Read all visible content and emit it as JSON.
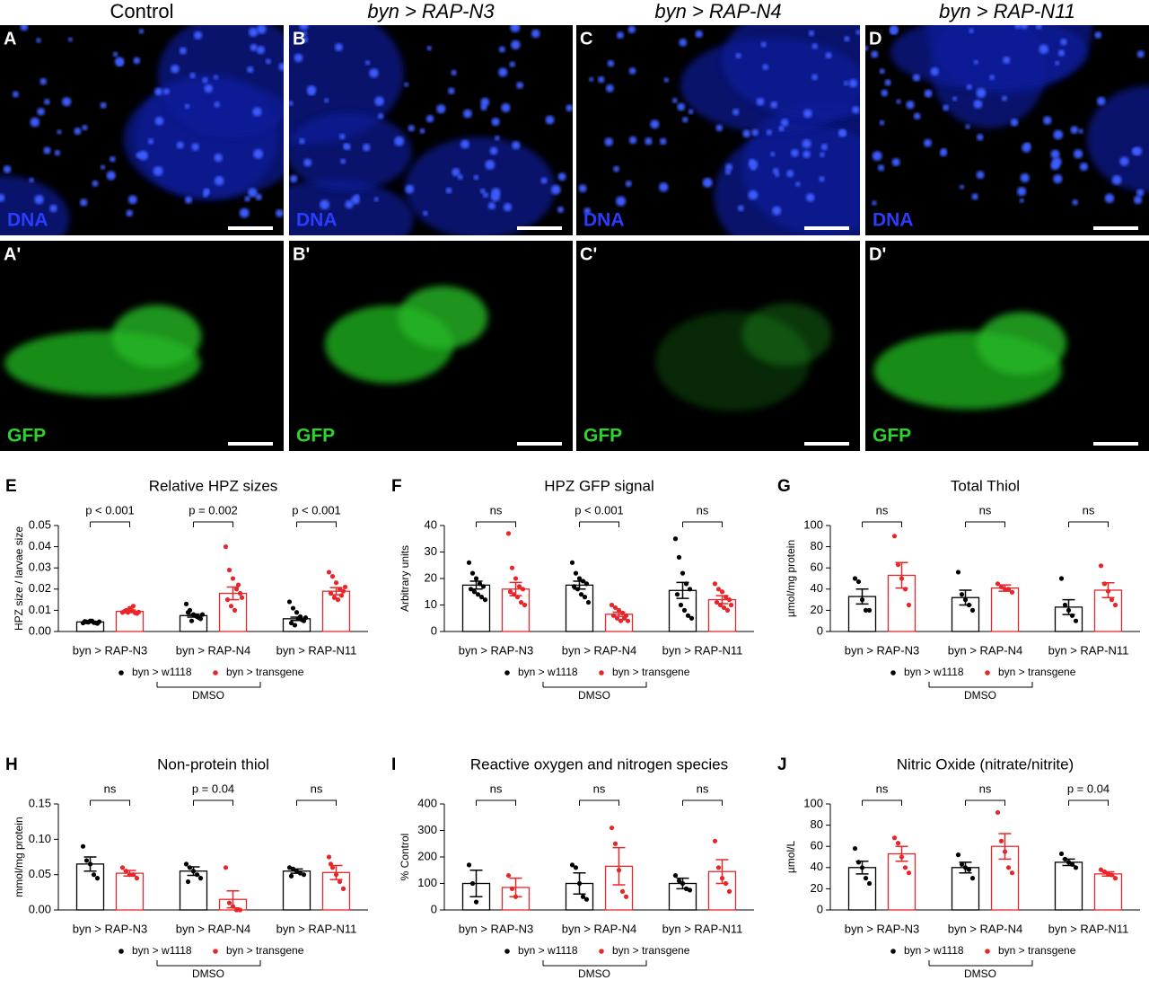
{
  "images": {
    "columns": [
      "Control",
      "byn > RAP-N3",
      "byn > RAP-N4",
      "byn > RAP-N11"
    ],
    "rows": [
      {
        "channel": "DNA",
        "panels": [
          "A",
          "B",
          "C",
          "D"
        ]
      },
      {
        "channel": "GFP",
        "panels": [
          "A'",
          "B'",
          "C'",
          "D'"
        ]
      }
    ]
  },
  "chart_data": [
    {
      "type": "bar",
      "panel": "E",
      "title": "Relative HPZ sizes",
      "ylabel": "HPZ size / larvae size",
      "categories": [
        "byn > RAP-N3",
        "byn > RAP-N4",
        "byn > RAP-N11"
      ],
      "ylim": [
        0,
        0.05
      ],
      "yticks": [
        {
          "value": 0,
          "label": "0.00"
        },
        {
          "value": 0.01,
          "label": "0.01"
        },
        {
          "value": 0.02,
          "label": "0.02"
        },
        {
          "value": 0.03,
          "label": "0.03"
        },
        {
          "value": 0.04,
          "label": "0.04"
        },
        {
          "value": 0.05,
          "label": "0.05"
        }
      ],
      "comparisons": [
        "p < 0.001",
        "p = 0.002",
        "p < 0.001"
      ],
      "group_label": "DMSO",
      "series": [
        {
          "name": "byn > w1118",
          "color": "#000000",
          "values": [
            0.0045,
            0.0075,
            0.006
          ],
          "errors": [
            0.0003,
            0.0007,
            0.0008
          ],
          "points": [
            [
              0.004,
              0.0045,
              0.005,
              0.0042,
              0.0038,
              0.0048,
              0.0044,
              0.005,
              0.0041,
              0.0046
            ],
            [
              0.013,
              0.01,
              0.008,
              0.007,
              0.006,
              0.009,
              0.005,
              0.0075,
              0.0065,
              0.008
            ],
            [
              0.014,
              0.011,
              0.009,
              0.007,
              0.005,
              0.004,
              0.003,
              0.006,
              0.0055,
              0.0065
            ]
          ]
        },
        {
          "name": "byn > transgene",
          "color": "#e8262a",
          "values": [
            0.0095,
            0.018,
            0.019
          ],
          "errors": [
            0.0006,
            0.003,
            0.0017
          ],
          "points": [
            [
              0.009,
              0.01,
              0.011,
              0.012,
              0.0085,
              0.0095,
              0.009,
              0.01,
              0.0088,
              0.0092
            ],
            [
              0.04,
              0.029,
              0.025,
              0.02,
              0.018,
              0.015,
              0.012,
              0.01,
              0.022,
              0.016
            ],
            [
              0.028,
              0.026,
              0.023,
              0.02,
              0.019,
              0.018,
              0.016,
              0.015,
              0.017,
              0.021
            ]
          ]
        }
      ]
    },
    {
      "type": "bar",
      "panel": "F",
      "title": "HPZ GFP signal",
      "ylabel": "Arbitrary units",
      "categories": [
        "byn > RAP-N3",
        "byn > RAP-N4",
        "byn > RAP-N11"
      ],
      "ylim": [
        0,
        40
      ],
      "yticks": [
        0,
        10,
        20,
        30,
        40
      ],
      "comparisons": [
        "ns",
        "p < 0.001",
        "ns"
      ],
      "group_label": "DMSO",
      "series": [
        {
          "name": "byn > w1118",
          "color": "#000000",
          "values": [
            17.5,
            17.5,
            15.5
          ],
          "errors": [
            1.5,
            1.5,
            3
          ],
          "points": [
            [
              26,
              22,
              20,
              18,
              17,
              16,
              15,
              14,
              13,
              12
            ],
            [
              26,
              22,
              20,
              19,
              18,
              17,
              16,
              14,
              13,
              11
            ],
            [
              35,
              28,
              22,
              18,
              16,
              14,
              10,
              8,
              6,
              5
            ]
          ]
        },
        {
          "name": "byn > transgene",
          "color": "#e8262a",
          "values": [
            16,
            6.5,
            12
          ],
          "errors": [
            2.5,
            0.8,
            1.5
          ],
          "points": [
            [
              37,
              24,
              20,
              17,
              16,
              15,
              14,
              13,
              11,
              10
            ],
            [
              10,
              9,
              8,
              7,
              6,
              6,
              5,
              4,
              5,
              4
            ],
            [
              18,
              16,
              15,
              13,
              12,
              11,
              10,
              9,
              8,
              10
            ]
          ]
        }
      ]
    },
    {
      "type": "bar",
      "panel": "G",
      "title": "Total Thiol",
      "ylabel": "µmol/mg protein",
      "categories": [
        "byn > RAP-N3",
        "byn > RAP-N4",
        "byn > RAP-N11"
      ],
      "ylim": [
        0,
        100
      ],
      "yticks": [
        0,
        20,
        40,
        60,
        80,
        100
      ],
      "comparisons": [
        "ns",
        "ns",
        "ns"
      ],
      "group_label": "DMSO",
      "series": [
        {
          "name": "byn > w1118",
          "color": "#000000",
          "values": [
            33,
            32,
            23
          ],
          "errors": [
            7,
            7,
            7
          ],
          "points": [
            [
              50,
              47,
              30,
              20,
              20
            ],
            [
              56,
              35,
              30,
              25,
              20
            ],
            [
              50,
              25,
              20,
              15,
              10
            ]
          ]
        },
        {
          "name": "byn > transgene",
          "color": "#e8262a",
          "values": [
            53,
            41,
            39
          ],
          "errors": [
            12,
            3,
            7
          ],
          "points": [
            [
              90,
              63,
              50,
              40,
              25
            ],
            [
              45,
              42,
              40,
              40,
              37
            ],
            [
              62,
              45,
              38,
              30,
              25
            ]
          ]
        }
      ]
    },
    {
      "type": "bar",
      "panel": "H",
      "title": "Non-protein thiol",
      "ylabel": "mmol/mg protein",
      "categories": [
        "byn > RAP-N3",
        "byn > RAP-N4",
        "byn > RAP-N11"
      ],
      "ylim": [
        0,
        0.15
      ],
      "yticks": [
        {
          "value": 0,
          "label": "0.00"
        },
        {
          "value": 0.05,
          "label": "0.05"
        },
        {
          "value": 0.1,
          "label": "0.10"
        },
        {
          "value": 0.15,
          "label": "0.15"
        }
      ],
      "comparisons": [
        "ns",
        "p = 0.04",
        "ns"
      ],
      "group_label": "DMSO",
      "series": [
        {
          "name": "byn > w1118",
          "color": "#000000",
          "values": [
            0.065,
            0.055,
            0.055
          ],
          "errors": [
            0.01,
            0.006,
            0.003
          ],
          "points": [
            [
              0.09,
              0.07,
              0.065,
              0.05,
              0.045
            ],
            [
              0.065,
              0.06,
              0.055,
              0.05,
              0.045,
              0.04
            ],
            [
              0.06,
              0.058,
              0.055,
              0.052,
              0.05,
              0.048
            ]
          ]
        },
        {
          "name": "byn > transgene",
          "color": "#e8262a",
          "values": [
            0.052,
            0.015,
            0.053
          ],
          "errors": [
            0.004,
            0.012,
            0.01
          ],
          "points": [
            [
              0.06,
              0.055,
              0.05,
              0.05,
              0.045
            ],
            [
              0.06,
              0.01,
              0.005,
              0,
              0
            ],
            [
              0.075,
              0.06,
              0.05,
              0.04,
              0.03,
              0.065
            ]
          ]
        }
      ]
    },
    {
      "type": "bar",
      "panel": "I",
      "title": "Reactive oxygen and nitrogen species",
      "ylabel": "% Control",
      "categories": [
        "byn > RAP-N3",
        "byn > RAP-N4",
        "byn > RAP-N11"
      ],
      "ylim": [
        0,
        400
      ],
      "yticks": [
        0,
        100,
        200,
        300,
        400
      ],
      "comparisons": [
        "ns",
        "ns",
        "ns"
      ],
      "group_label": "DMSO",
      "series": [
        {
          "name": "byn > w1118",
          "color": "#000000",
          "values": [
            100,
            100,
            100
          ],
          "errors": [
            50,
            40,
            20
          ],
          "points": [
            [
              170,
              100,
              30
            ],
            [
              170,
              160,
              100,
              50,
              40
            ],
            [
              130,
              110,
              100,
              80,
              75
            ]
          ]
        },
        {
          "name": "byn > transgene",
          "color": "#e8262a",
          "values": [
            85,
            165,
            145
          ],
          "errors": [
            35,
            70,
            45
          ],
          "points": [
            [
              130,
              80,
              50
            ],
            [
              310,
              250,
              150,
              70,
              50
            ],
            [
              260,
              160,
              120,
              100,
              70
            ]
          ]
        }
      ]
    },
    {
      "type": "bar",
      "panel": "J",
      "title": "Nitric Oxide (nitrate/nitrite)",
      "ylabel": "µmol/L",
      "categories": [
        "byn > RAP-N3",
        "byn > RAP-N4",
        "byn > RAP-N11"
      ],
      "ylim": [
        0,
        100
      ],
      "yticks": [
        0,
        20,
        40,
        60,
        80,
        100
      ],
      "comparisons": [
        "ns",
        "ns",
        "p = 0.04"
      ],
      "group_label": "DMSO",
      "series": [
        {
          "name": "byn > w1118",
          "color": "#000000",
          "values": [
            40,
            40,
            45
          ],
          "errors": [
            6,
            5,
            3
          ],
          "points": [
            [
              58,
              45,
              40,
              30,
              25
            ],
            [
              52,
              43,
              40,
              38,
              30
            ],
            [
              53,
              48,
              45,
              43,
              40
            ]
          ]
        },
        {
          "name": "byn > transgene",
          "color": "#e8262a",
          "values": [
            53,
            60,
            34
          ],
          "errors": [
            7,
            12,
            2
          ],
          "points": [
            [
              68,
              63,
              50,
              40,
              35
            ],
            [
              92,
              65,
              55,
              40,
              35
            ],
            [
              38,
              36,
              34,
              33,
              30
            ]
          ]
        }
      ]
    }
  ]
}
